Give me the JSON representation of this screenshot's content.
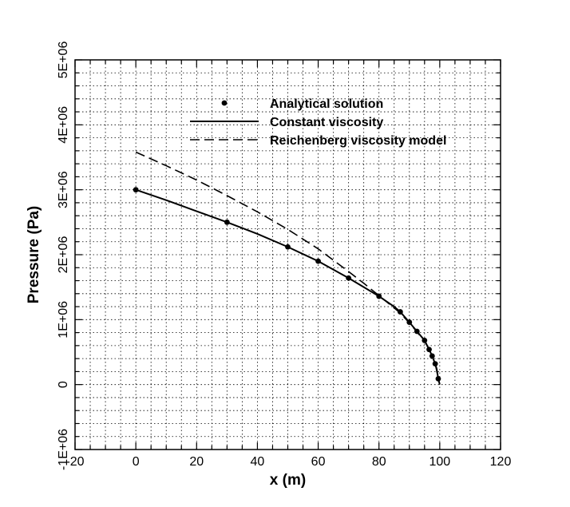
{
  "chart_data": {
    "type": "line",
    "xlabel": "x (m)",
    "ylabel": "Pressure (Pa)",
    "xlim": [
      -20,
      120
    ],
    "ylim": [
      -1000000,
      5000000
    ],
    "x_ticks": [
      -20,
      0,
      20,
      40,
      60,
      80,
      100,
      120
    ],
    "x_tick_labels": [
      "-20",
      "0",
      "20",
      "40",
      "60",
      "80",
      "100",
      "120"
    ],
    "y_ticks": [
      -1000000,
      0,
      1000000,
      2000000,
      3000000,
      4000000,
      5000000
    ],
    "y_tick_labels": [
      "-1E+06",
      "0",
      "1E+06",
      "2E+06",
      "3E+06",
      "4E+06",
      "5E+06"
    ],
    "grid": true,
    "legend_position": "top-center",
    "series": [
      {
        "name": "Analytical solution",
        "style": "markers",
        "color": "#000000",
        "x": [
          0,
          30,
          50,
          60,
          70,
          80,
          87,
          90,
          92.5,
          95,
          96.5,
          97.5,
          98.5,
          99.5
        ],
        "y": [
          3000000,
          2500000,
          2120000,
          1900000,
          1640000,
          1360000,
          1120000,
          960000,
          820000,
          680000,
          540000,
          440000,
          320000,
          90000
        ]
      },
      {
        "name": "Constant viscosity",
        "style": "solid",
        "color": "#000000",
        "x": [
          0,
          10,
          20,
          30,
          40,
          50,
          60,
          70,
          75,
          80,
          85,
          87,
          90,
          92.5,
          95,
          96.5,
          97.5,
          98.5,
          99,
          99.5,
          100
        ],
        "y": [
          3000000,
          2840000,
          2670000,
          2500000,
          2320000,
          2120000,
          1900000,
          1640000,
          1500000,
          1360000,
          1200000,
          1120000,
          960000,
          820000,
          680000,
          540000,
          440000,
          320000,
          240000,
          90000,
          0
        ]
      },
      {
        "name": "Reichenberg viscosity model",
        "style": "dashed",
        "color": "#000000",
        "x": [
          0,
          10,
          20,
          30,
          40,
          50,
          60,
          70,
          75,
          80,
          85,
          87,
          90,
          92.5,
          95,
          96.5,
          97.5,
          98.5,
          99.5,
          100
        ],
        "y": [
          3580000,
          3370000,
          3150000,
          2910000,
          2660000,
          2390000,
          2090000,
          1740000,
          1560000,
          1370000,
          1180000,
          1100000,
          950000,
          810000,
          670000,
          540000,
          440000,
          320000,
          100000,
          0
        ]
      }
    ]
  }
}
